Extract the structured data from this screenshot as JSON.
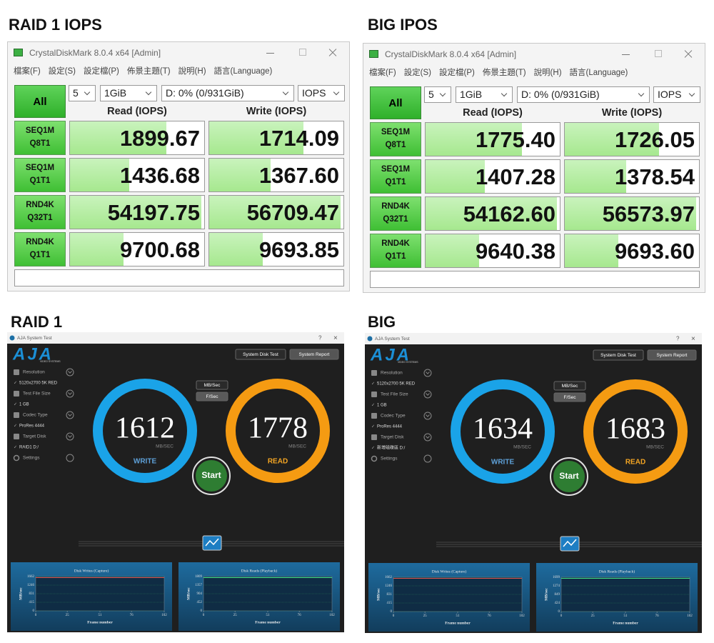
{
  "cdm": [
    {
      "heading": "RAID 1 IOPS",
      "window_title": "CrystalDiskMark 8.0.4 x64 [Admin]",
      "menu": [
        "檔案(F)",
        "設定(S)",
        "設定檔(P)",
        "佈景主題(T)",
        "說明(H)",
        "語言(Language)"
      ],
      "all_button": "All",
      "count": "5",
      "size": "1GiB",
      "drive": "D: 0% (0/931GiB)",
      "unit": "IOPS",
      "read_header": "Read (IOPS)",
      "write_header": "Write (IOPS)",
      "rows": [
        {
          "test": "SEQ1M",
          "params": "Q8T1",
          "read": "1899.67",
          "write": "1714.09"
        },
        {
          "test": "SEQ1M",
          "params": "Q1T1",
          "read": "1436.68",
          "write": "1367.60"
        },
        {
          "test": "RND4K",
          "params": "Q32T1",
          "read": "54197.75",
          "write": "56709.47"
        },
        {
          "test": "RND4K",
          "params": "Q1T1",
          "read": "9700.68",
          "write": "9693.85"
        }
      ]
    },
    {
      "heading": "BIG IPOS",
      "window_title": "CrystalDiskMark 8.0.4 x64 [Admin]",
      "menu": [
        "檔案(F)",
        "設定(S)",
        "設定檔(P)",
        "佈景主題(T)",
        "說明(H)",
        "語言(Language)"
      ],
      "all_button": "All",
      "count": "5",
      "size": "1GiB",
      "drive": "D: 0% (0/931GiB)",
      "unit": "IOPS",
      "read_header": "Read (IOPS)",
      "write_header": "Write (IOPS)",
      "rows": [
        {
          "test": "SEQ1M",
          "params": "Q8T1",
          "read": "1775.40",
          "write": "1726.05"
        },
        {
          "test": "SEQ1M",
          "params": "Q1T1",
          "read": "1407.28",
          "write": "1378.54"
        },
        {
          "test": "RND4K",
          "params": "Q32T1",
          "read": "54162.60",
          "write": "56573.97"
        },
        {
          "test": "RND4K",
          "params": "Q1T1",
          "read": "9640.38",
          "write": "9693.60"
        }
      ]
    }
  ],
  "aja": [
    {
      "heading": "RAID 1",
      "window_title": "AJA System Test",
      "help": "?",
      "close": "×",
      "logo": "AJA",
      "logo_sub": "VIDEO SYSTEMS",
      "buttons": [
        "System Disk Test",
        "System Report"
      ],
      "settings": [
        {
          "label": "Resolution",
          "value": "5120x2700 5K RED"
        },
        {
          "label": "Test File Size",
          "value": "1 GB"
        },
        {
          "label": "Codec Type",
          "value": "ProRes 4444"
        },
        {
          "label": "Target Disk",
          "value": "RAID1 D:/"
        }
      ],
      "settings_label": "Settings",
      "unit_toggles": [
        "MB/Sec",
        "F/Sec"
      ],
      "write": {
        "value": "1612",
        "unit": "MB/SEC",
        "label": "WRITE"
      },
      "read": {
        "value": "1778",
        "unit": "MB/SEC",
        "label": "READ"
      },
      "start": "Start",
      "charts": [
        {
          "title": "Disk Writes (Capture)",
          "y_label": "MB/sec",
          "x_label": "Frame number",
          "yticks": [
            1662,
            1246,
            831,
            415,
            0
          ],
          "xticks": [
            0,
            25,
            51,
            76,
            102
          ]
        },
        {
          "title": "Disk Reads (Playback)",
          "y_label": "MB/sec",
          "x_label": "Frame number",
          "yticks": [
            1809,
            1357,
            904,
            452,
            0
          ],
          "xticks": [
            0,
            25,
            51,
            76,
            102
          ]
        }
      ]
    },
    {
      "heading": "BIG",
      "window_title": "AJA System Test",
      "help": "?",
      "close": "×",
      "logo": "AJA",
      "logo_sub": "VIDEO SYSTEMS",
      "buttons": [
        "System Disk Test",
        "System Report"
      ],
      "settings": [
        {
          "label": "Resolution",
          "value": "5120x2700 5K RED"
        },
        {
          "label": "Test File Size",
          "value": "1 GB"
        },
        {
          "label": "Codec Type",
          "value": "ProRes 4444"
        },
        {
          "label": "Target Disk",
          "value": "新增磁碟區 D:/"
        }
      ],
      "settings_label": "Settings",
      "unit_toggles": [
        "MB/Sec",
        "F/Sec"
      ],
      "write": {
        "value": "1634",
        "unit": "MB/SEC",
        "label": "WRITE"
      },
      "read": {
        "value": "1683",
        "unit": "MB/SEC",
        "label": "READ"
      },
      "start": "Start",
      "charts": [
        {
          "title": "Disk Writes (Capture)",
          "y_label": "MB/sec",
          "x_label": "Frame number",
          "yticks": [
            1662,
            1246,
            831,
            415,
            0
          ],
          "xticks": [
            0,
            25,
            51,
            76,
            102
          ]
        },
        {
          "title": "Disk Reads (Playback)",
          "y_label": "MB/sec",
          "x_label": "Frame number",
          "yticks": [
            1699,
            1274,
            849,
            424,
            0
          ],
          "xticks": [
            0,
            25,
            51,
            76,
            102
          ]
        }
      ]
    }
  ]
}
